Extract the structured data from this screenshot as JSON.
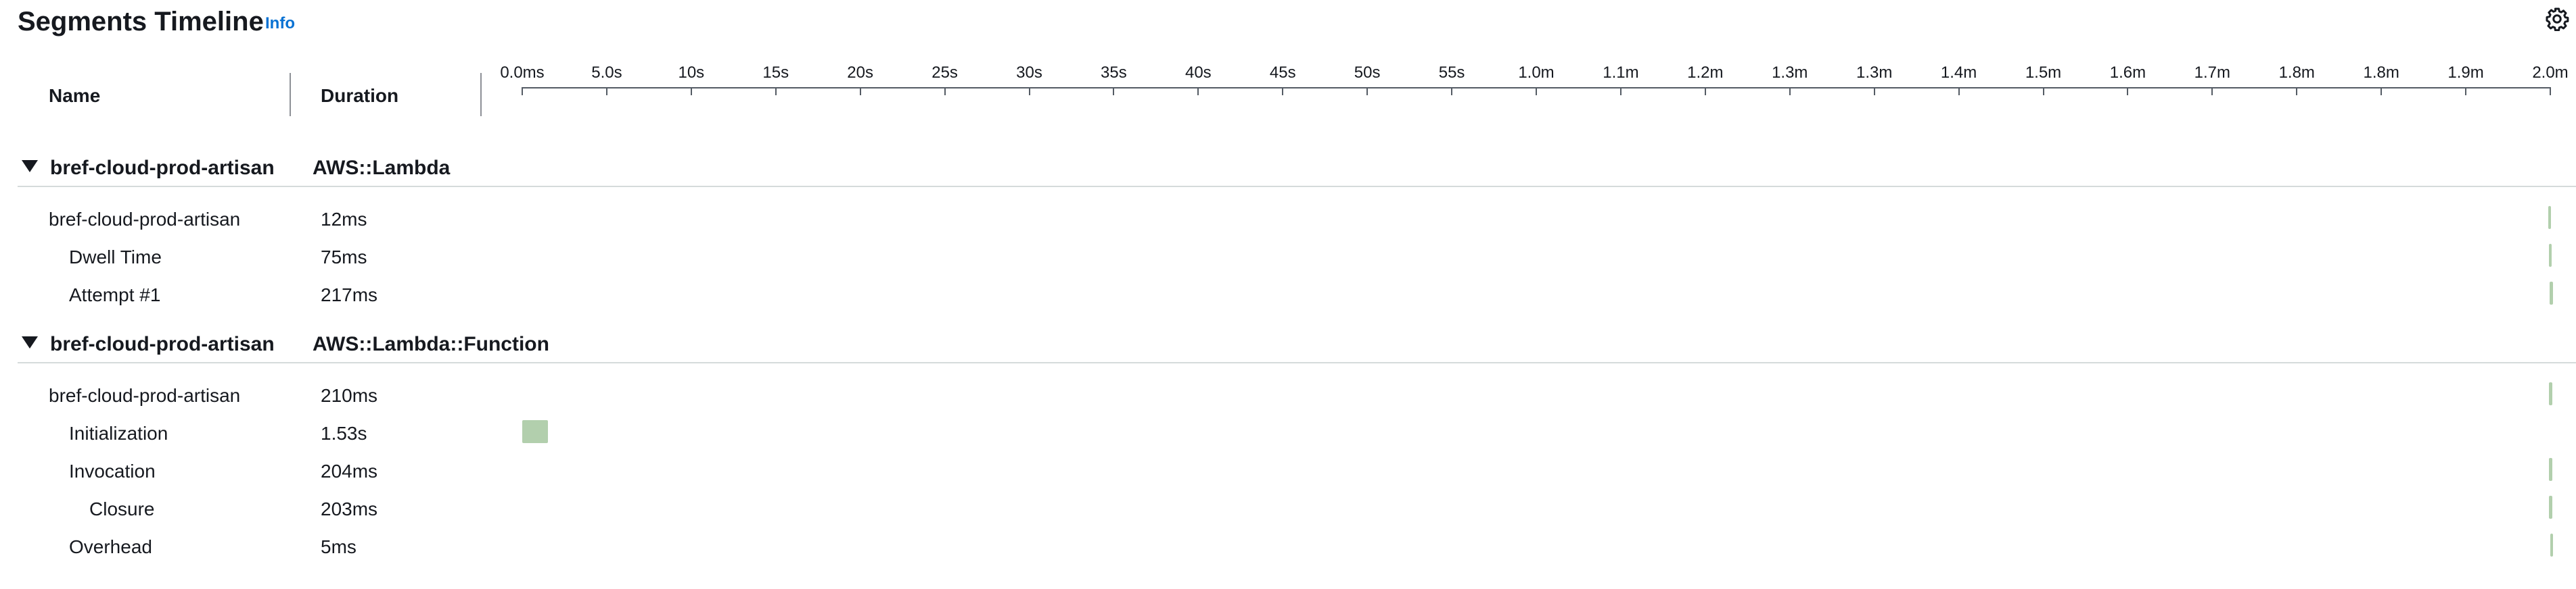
{
  "header": {
    "title": "Segments Timeline",
    "info_link": "Info",
    "settings_icon": "gear-icon"
  },
  "columns": {
    "name": "Name",
    "duration": "Duration"
  },
  "axis": {
    "tick_labels": [
      "0.0ms",
      "5.0s",
      "10s",
      "15s",
      "20s",
      "25s",
      "30s",
      "35s",
      "40s",
      "45s",
      "50s",
      "55s",
      "1.0m",
      "1.1m",
      "1.2m",
      "1.3m",
      "1.3m",
      "1.4m",
      "1.5m",
      "1.6m",
      "1.7m",
      "1.8m",
      "1.8m",
      "1.9m",
      "2.0m"
    ],
    "max_seconds": 120
  },
  "colors": {
    "accent": "#0972d3",
    "bar": "#b2cfad",
    "text": "#16191f"
  },
  "groups": [
    {
      "name": "bref-cloud-prod-artisan",
      "type": "AWS::Lambda",
      "rows": [
        {
          "name": "bref-cloud-prod-artisan",
          "duration": "12ms",
          "indent": 0,
          "start_s": 119.88,
          "dur_s": 0.012
        },
        {
          "name": "Dwell Time",
          "duration": "75ms",
          "indent": 1,
          "start_s": 119.9,
          "dur_s": 0.075
        },
        {
          "name": "Attempt #1",
          "duration": "217ms",
          "indent": 1,
          "start_s": 119.94,
          "dur_s": 0.217
        }
      ]
    },
    {
      "name": "bref-cloud-prod-artisan",
      "type": "AWS::Lambda::Function",
      "rows": [
        {
          "name": "bref-cloud-prod-artisan",
          "duration": "210ms",
          "indent": 0,
          "start_s": 119.92,
          "dur_s": 0.21
        },
        {
          "name": "Initialization",
          "duration": "1.53s",
          "indent": 1,
          "start_s": 0,
          "dur_s": 1.53
        },
        {
          "name": "Invocation",
          "duration": "204ms",
          "indent": 1,
          "start_s": 119.93,
          "dur_s": 0.204
        },
        {
          "name": "Closure",
          "duration": "203ms",
          "indent": 2,
          "start_s": 119.93,
          "dur_s": 0.203
        },
        {
          "name": "Overhead",
          "duration": "5ms",
          "indent": 1,
          "start_s": 120.0,
          "dur_s": 0.005
        }
      ]
    }
  ]
}
